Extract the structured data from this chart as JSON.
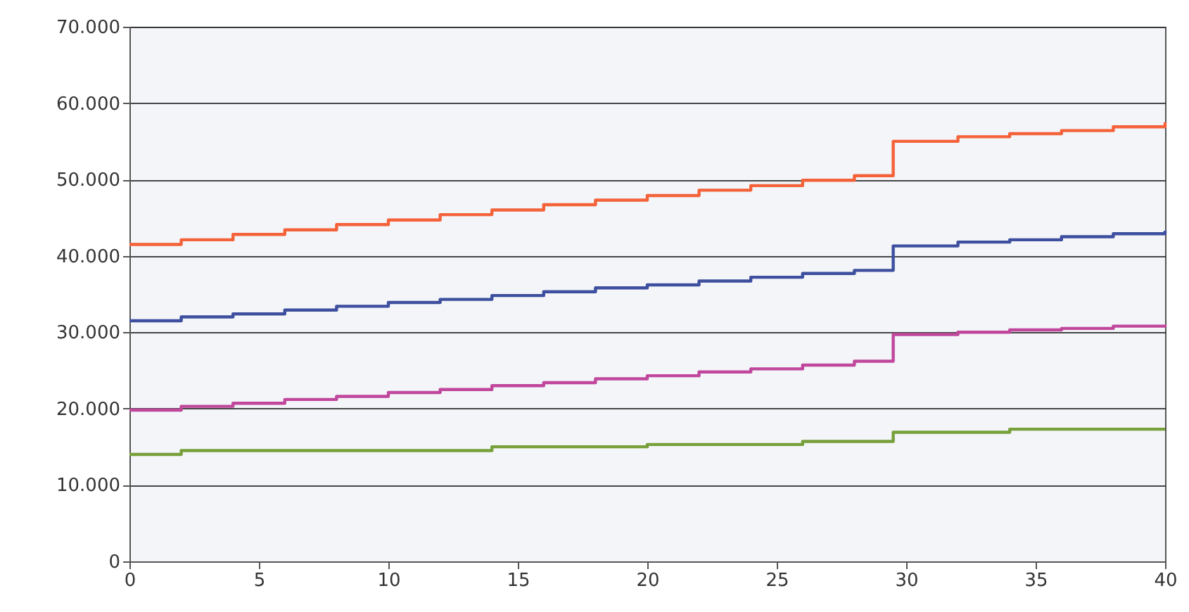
{
  "chart_data": {
    "type": "step",
    "x": [
      0,
      2,
      4,
      6,
      8,
      10,
      12,
      14,
      16,
      18,
      20,
      22,
      24,
      26,
      28,
      29.5,
      32,
      34,
      36,
      38,
      40
    ],
    "series": [
      {
        "color": "#f4623a",
        "values": [
          41500,
          42100,
          42800,
          43400,
          44100,
          44700,
          45400,
          46000,
          46700,
          47300,
          47900,
          48600,
          49200,
          49900,
          50500,
          55000,
          55600,
          56000,
          56400,
          56900,
          57500
        ]
      },
      {
        "color": "#3d4f9e",
        "values": [
          31500,
          32000,
          32400,
          32900,
          33400,
          33900,
          34300,
          34800,
          35300,
          35800,
          36200,
          36700,
          37200,
          37700,
          38100,
          41300,
          41800,
          42100,
          42500,
          42900,
          43300
        ]
      },
      {
        "color": "#c0479c",
        "values": [
          19800,
          20300,
          20700,
          21200,
          21600,
          22100,
          22500,
          23000,
          23400,
          23900,
          24300,
          24800,
          25200,
          25700,
          26200,
          29700,
          30000,
          30300,
          30500,
          30800,
          31000
        ]
      },
      {
        "color": "#77a03a",
        "values": [
          14000,
          14500,
          14500,
          14500,
          14500,
          14500,
          14500,
          15000,
          15000,
          15000,
          15300,
          15300,
          15300,
          15700,
          15700,
          16900,
          16900,
          17300,
          17300,
          17300,
          17300
        ]
      }
    ],
    "xlim": [
      0,
      40
    ],
    "xticks": [
      0,
      5,
      10,
      15,
      20,
      25,
      30,
      35,
      40
    ],
    "ylim": [
      0,
      70000
    ],
    "yticks": [
      0,
      {
        "value": 10000,
        "label": "10.000"
      },
      {
        "value": 20000,
        "label": "20.000"
      },
      {
        "value": 30000,
        "label": "30.000"
      },
      {
        "value": 40000,
        "label": "40.000"
      },
      {
        "value": 50000,
        "label": "50.000"
      },
      {
        "value": 60000,
        "label": "60.000"
      },
      {
        "value": 70000,
        "label": "70.000"
      }
    ],
    "grid": "y",
    "legend": false
  }
}
